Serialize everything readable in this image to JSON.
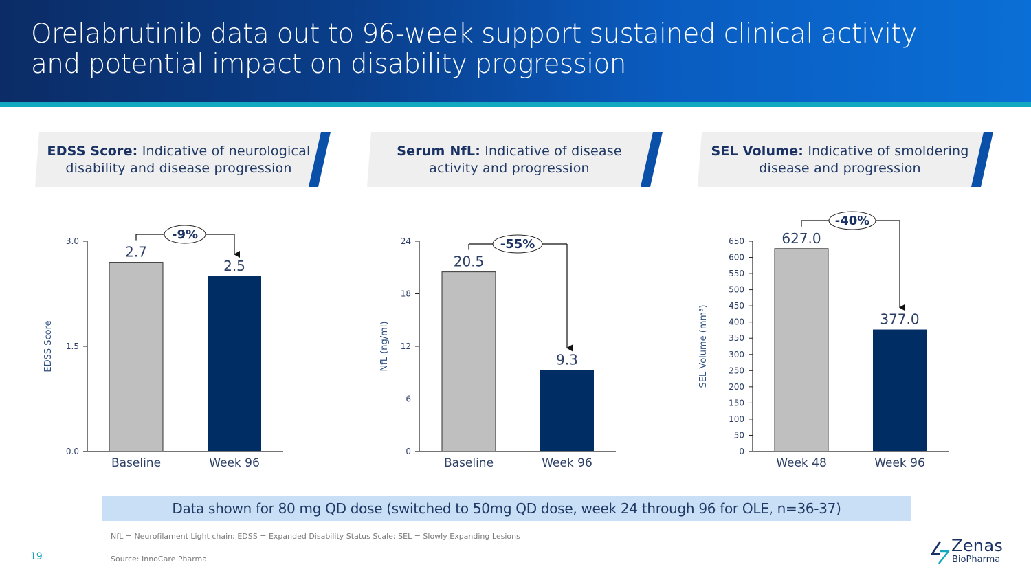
{
  "header": {
    "title_lines": [
      "Orelabrutinib data out to 96-week support sustained clinical activity",
      "and potential impact on disability progression"
    ]
  },
  "banners": [
    {
      "bold": "EDSS Score:",
      "text_line1": " Indicative of neurological",
      "text_line2": "disability and disease progression"
    },
    {
      "bold": "Serum NfL:",
      "text_line1": " Indicative of disease",
      "text_line2": "activity and progression"
    },
    {
      "bold": "SEL Volume:",
      "text_line1": " Indicative of smoldering",
      "text_line2": "disease and progression"
    }
  ],
  "colors": {
    "bar_first": "#bfbfbf",
    "bar_second": "#002d64",
    "accent_strip": "#12a8c0",
    "banner_slash": "#0a4fa8",
    "note_box": "#c9dff5"
  },
  "chart_data": [
    {
      "type": "bar",
      "title": "EDSS Score",
      "categories": [
        "Baseline",
        "Week 96"
      ],
      "values": [
        2.7,
        2.5
      ],
      "value_labels": [
        "2.7",
        "2.5"
      ],
      "ylabel": "EDSS Score",
      "xlabel": "",
      "ylim": [
        0,
        3.0
      ],
      "yticks": [
        0,
        1.5,
        3.0
      ],
      "ytick_labels": [
        "0.0",
        "1.5",
        "3.0"
      ],
      "change_annotation": "-9%",
      "grid": false
    },
    {
      "type": "bar",
      "title": "Serum NfL",
      "categories": [
        "Baseline",
        "Week 96"
      ],
      "values": [
        20.5,
        9.3
      ],
      "value_labels": [
        "20.5",
        "9.3"
      ],
      "ylabel": "NfL (ng/ml)",
      "xlabel": "",
      "ylim": [
        0,
        24
      ],
      "yticks": [
        0,
        6,
        12,
        18,
        24
      ],
      "ytick_labels": [
        "0",
        "6",
        "12",
        "18",
        "24"
      ],
      "change_annotation": "-55%",
      "grid": false
    },
    {
      "type": "bar",
      "title": "SEL Volume",
      "categories": [
        "Week 48",
        "Week 96"
      ],
      "values": [
        627.0,
        377.0
      ],
      "value_labels": [
        "627.0",
        "377.0"
      ],
      "ylabel": "SEL Volume (mm³)",
      "xlabel": "",
      "ylim": [
        0,
        650
      ],
      "yticks": [
        0,
        50,
        100,
        150,
        200,
        250,
        300,
        350,
        400,
        450,
        500,
        550,
        600,
        650
      ],
      "ytick_labels": [
        "0",
        "50",
        "100",
        "150",
        "200",
        "250",
        "300",
        "350",
        "400",
        "450",
        "500",
        "550",
        "600",
        "650"
      ],
      "change_annotation": "-40%",
      "grid": false
    }
  ],
  "note": "Data shown for 80 mg QD dose (switched to 50mg QD dose, week 24 through 96 for OLE, n=36-37)",
  "footnotes": {
    "abbreviations": "NfL = Neurofilament Light chain; EDSS = Expanded Disability Status Scale; SEL = Slowly Expanding Lesions",
    "source": "Source: InnoCare Pharma"
  },
  "page_number": "19",
  "logo": {
    "name": "Zenas",
    "subtitle": "BioPharma"
  }
}
